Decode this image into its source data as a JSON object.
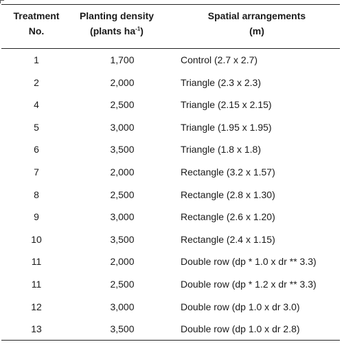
{
  "table": {
    "headers": {
      "treatment_line1": "Treatment",
      "treatment_line2": "No.",
      "density_line1": "Planting density",
      "density_line2_pre": "(plants ha",
      "density_line2_sup": "-1",
      "density_line2_post": ")",
      "spatial_line1": "Spatial arrangements",
      "spatial_line2": "(m)"
    },
    "rows": [
      {
        "treatment": "1",
        "density": "1,700",
        "arrangement": "Control (2.7 x 2.7)"
      },
      {
        "treatment": "2",
        "density": "2,000",
        "arrangement": "Triangle (2.3 x 2.3)"
      },
      {
        "treatment": "4",
        "density": "2,500",
        "arrangement": "Triangle (2.15 x 2.15)"
      },
      {
        "treatment": "5",
        "density": "3,000",
        "arrangement": "Triangle (1.95 x 1.95)"
      },
      {
        "treatment": "6",
        "density": "3,500",
        "arrangement": "Triangle (1.8 x 1.8)"
      },
      {
        "treatment": "7",
        "density": "2,000",
        "arrangement": "Rectangle (3.2 x 1.57)"
      },
      {
        "treatment": "8",
        "density": "2,500",
        "arrangement": "Rectangle (2.8 x 1.30)"
      },
      {
        "treatment": "9",
        "density": "3,000",
        "arrangement": "Rectangle (2.6 x 1.20)"
      },
      {
        "treatment": "10",
        "density": "3,500",
        "arrangement": "Rectangle (2.4 x 1.15)"
      },
      {
        "treatment": "11",
        "density": "2,000",
        "arrangement": "Double row (dp * 1.0 x dr ** 3.3)"
      },
      {
        "treatment": "11",
        "density": "2,500",
        "arrangement": "Double row (dp * 1.2 x dr ** 3.3)"
      },
      {
        "treatment": "12",
        "density": "3,000",
        "arrangement": "Double row (dp 1.0 x dr 3.0)"
      },
      {
        "treatment": "13",
        "density": "3,500",
        "arrangement": "Double row (dp 1.0 x dr 2.8)"
      }
    ]
  }
}
